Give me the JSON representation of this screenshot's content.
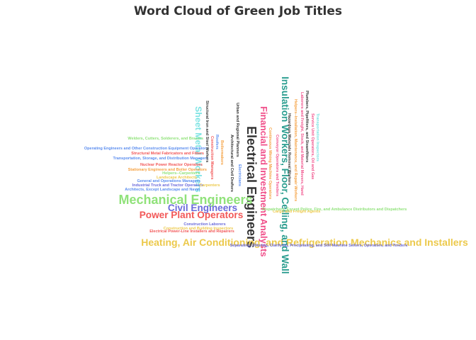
{
  "chart_data": {
    "type": "wordcloud",
    "title": "Word Cloud of Green Job Titles",
    "words": [
      {
        "text": "Electrical Engineers",
        "weight": 100,
        "color": "#333333",
        "orientation": "vertical"
      },
      {
        "text": "Mechanical Engineers",
        "weight": 92,
        "color": "#90e27a",
        "orientation": "horizontal"
      },
      {
        "text": "Heating, Air Conditioning, and Refrigeration Mechanics and Installers",
        "weight": 70,
        "color": "#ecc94b",
        "orientation": "horizontal"
      },
      {
        "text": "Insulation Workers, Floor, Ceiling, and Wall",
        "weight": 68,
        "color": "#2a9d8f",
        "orientation": "vertical"
      },
      {
        "text": "Financial and Investment Analysts",
        "weight": 65,
        "color": "#f0508a",
        "orientation": "vertical"
      },
      {
        "text": "Civil Engineers",
        "weight": 68,
        "color": "#6b6bdb",
        "orientation": "horizontal"
      },
      {
        "text": "Power Plant Operators",
        "weight": 68,
        "color": "#f25757",
        "orientation": "horizontal"
      },
      {
        "text": "Sheet Metal Workers",
        "weight": 62,
        "color": "#7de3e3",
        "orientation": "vertical"
      },
      {
        "text": "Boilermakers",
        "weight": 58,
        "color": "#f5a142",
        "orientation": "vertical"
      },
      {
        "text": "Welders, Cutters, Solderers, and Brazers",
        "weight": 20,
        "color": "#90e27a",
        "orientation": "horizontal"
      },
      {
        "text": "Operating Engineers and Other Construction Equipment Operators",
        "weight": 20,
        "color": "#5b8def",
        "orientation": "horizontal"
      },
      {
        "text": "Structural Metal Fabricators and Fitters",
        "weight": 21,
        "color": "#f25757",
        "orientation": "horizontal"
      },
      {
        "text": "Transportation, Storage, and Distribution Managers",
        "weight": 21,
        "color": "#5b8def",
        "orientation": "horizontal"
      },
      {
        "text": "Nuclear Power Reactor Operators",
        "weight": 21,
        "color": "#f25757",
        "orientation": "horizontal"
      },
      {
        "text": "Stationary Engineers and Boiler Operators",
        "weight": 21,
        "color": "#f5a142",
        "orientation": "horizontal"
      },
      {
        "text": "Helpers--Carpenters",
        "weight": 20,
        "color": "#90e27a",
        "orientation": "horizontal"
      },
      {
        "text": "Landscape Architects",
        "weight": 20,
        "color": "#ecc94b",
        "orientation": "horizontal"
      },
      {
        "text": "General and Operations Managers",
        "weight": 20,
        "color": "#5b8def",
        "orientation": "horizontal"
      },
      {
        "text": "Industrial Truck and Tractor Operators",
        "weight": 21,
        "color": "#6b6bdb",
        "orientation": "horizontal"
      },
      {
        "text": "Carpenters",
        "weight": 20,
        "color": "#ecc94b",
        "orientation": "horizontal"
      },
      {
        "text": "Architects, Except Landscape and Naval",
        "weight": 20,
        "color": "#5b8def",
        "orientation": "horizontal"
      },
      {
        "text": "Construction Laborers",
        "weight": 20,
        "color": "#6b6bdb",
        "orientation": "horizontal"
      },
      {
        "text": "Construction and Building Inspectors",
        "weight": 20,
        "color": "#ecc94b",
        "orientation": "horizontal"
      },
      {
        "text": "Electrical Power-Line Installers and Repairers",
        "weight": 21,
        "color": "#f25757",
        "orientation": "horizontal"
      },
      {
        "text": "Separating, Filtering, Clarifying, Precipitating, and Still Machine Setters, Operators, and Tenders",
        "weight": 19,
        "color": "#6b6bdb",
        "orientation": "horizontal"
      },
      {
        "text": "Cargo and Freight Agents",
        "weight": 20,
        "color": "#ecc94b",
        "orientation": "horizontal"
      },
      {
        "text": "Dispatchers, Except Police, Fire, and Ambulance Distributors and Dispatchers",
        "weight": 20,
        "color": "#90e27a",
        "orientation": "horizontal"
      },
      {
        "text": "Structural Iron and Steel Workers",
        "weight": 19,
        "color": "#333333",
        "orientation": "vertical"
      },
      {
        "text": "Construction Managers",
        "weight": 19,
        "color": "#f25757",
        "orientation": "vertical"
      },
      {
        "text": "Roofers",
        "weight": 19,
        "color": "#5b8def",
        "orientation": "vertical"
      },
      {
        "text": "Urban and Regional Planners",
        "weight": 19,
        "color": "#333333",
        "orientation": "vertical"
      },
      {
        "text": "Architectural and Civil Drafters",
        "weight": 19,
        "color": "#333333",
        "orientation": "vertical"
      },
      {
        "text": "Electricians",
        "weight": 19,
        "color": "#5b8def",
        "orientation": "vertical"
      },
      {
        "text": "Hazardous Materials Removal Workers",
        "weight": 19,
        "color": "#333333",
        "orientation": "vertical"
      },
      {
        "text": "Continuous Mining Machine Operators",
        "weight": 19,
        "color": "#f5a142",
        "orientation": "vertical"
      },
      {
        "text": "Conveyor Operators and Tenders",
        "weight": 19,
        "color": "#f0508a",
        "orientation": "vertical"
      },
      {
        "text": "Laborers and Freight, Stock, and Material Movers, Hand",
        "weight": 19,
        "color": "#f0508a",
        "orientation": "vertical"
      },
      {
        "text": "Plumbers, Pipefitters, and Steamfitters",
        "weight": 19,
        "color": "#333333",
        "orientation": "vertical"
      },
      {
        "text": "Helpers--Installation, Maintenance, and Repair Workers",
        "weight": 19,
        "color": "#f5a142",
        "orientation": "vertical"
      },
      {
        "text": "Service Unit Operators, Oil and Gas",
        "weight": 19,
        "color": "#f0508a",
        "orientation": "vertical"
      },
      {
        "text": "Transportation Inspectors",
        "weight": 19,
        "color": "#7de3e3",
        "orientation": "vertical"
      }
    ]
  }
}
